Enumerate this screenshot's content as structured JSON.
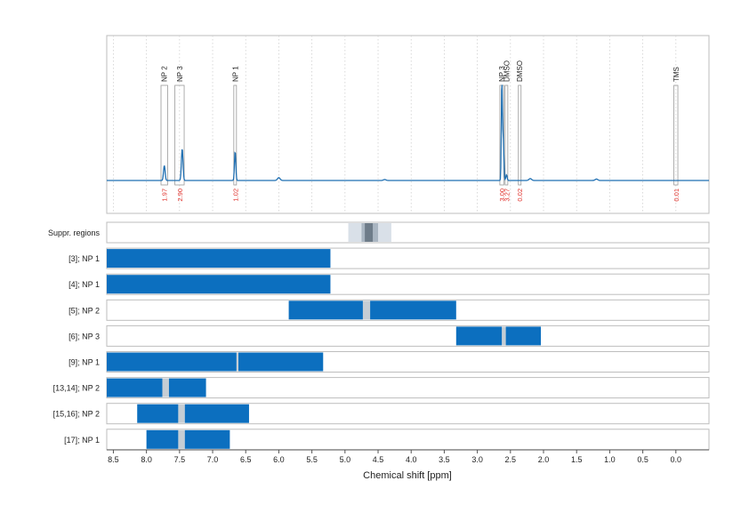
{
  "chart_data": {
    "type": "line",
    "xlabel": "Chemical shift [ppm]",
    "xlim": [
      8.6,
      -0.5
    ],
    "x_reversed": true,
    "x_ticks": [
      "8.5",
      "8.0",
      "7.5",
      "7.0",
      "6.5",
      "6.0",
      "5.5",
      "5.0",
      "4.5",
      "4.0",
      "3.5",
      "3.0",
      "2.5",
      "2.0",
      "1.5",
      "1.0",
      "0.5",
      "0.0"
    ],
    "grid": true,
    "colors": {
      "spectrum": "#1f6fb2",
      "range_bar": "#0c6fbf",
      "gap_band": "#c5cdd4",
      "integral_text": "#e0302a",
      "suppr_outer": "#d9e0e8",
      "suppr_mid": "#aab6c2",
      "suppr_core": "#6e7c89"
    },
    "spectrum": {
      "baseline": 0.0,
      "ylim": [
        -0.15,
        1.0
      ],
      "peaks": [
        {
          "ppm": 7.73,
          "height": 0.16,
          "width": 0.012
        },
        {
          "ppm": 7.46,
          "height": 0.34,
          "width": 0.012
        },
        {
          "ppm": 6.66,
          "height": 0.31,
          "width": 0.01
        },
        {
          "ppm": 6.0,
          "height": 0.03,
          "width": 0.02
        },
        {
          "ppm": 4.4,
          "height": 0.01,
          "width": 0.02
        },
        {
          "ppm": 2.63,
          "height": 1.0,
          "width": 0.008
        },
        {
          "ppm": 2.61,
          "height": 0.45,
          "width": 0.01
        },
        {
          "ppm": 2.56,
          "height": 0.06,
          "width": 0.01
        },
        {
          "ppm": 2.2,
          "height": 0.02,
          "width": 0.02
        },
        {
          "ppm": 1.2,
          "height": 0.015,
          "width": 0.02
        }
      ]
    },
    "annotations": [
      {
        "label": "NP 2",
        "ppm_from": 7.78,
        "ppm_to": 7.68,
        "integral": "1.97"
      },
      {
        "label": "NP 3",
        "ppm_from": 7.57,
        "ppm_to": 7.43,
        "integral": "2.90"
      },
      {
        "label": "NP 1",
        "ppm_from": 6.68,
        "ppm_to": 6.64,
        "integral": "1.02"
      },
      {
        "label": "NP 3",
        "ppm_from": 2.66,
        "ppm_to": 2.6,
        "integral": "3.00"
      },
      {
        "label": "DMSO",
        "ppm_from": 2.58,
        "ppm_to": 2.54,
        "integral": "3.27"
      },
      {
        "label": "DMSO",
        "ppm_from": 2.38,
        "ppm_to": 2.34,
        "integral": "0.02"
      },
      {
        "label": "TMS",
        "ppm_from": 0.03,
        "ppm_to": -0.03,
        "integral": "0.01"
      }
    ],
    "suppression": {
      "label": "Suppr. regions",
      "outer": [
        4.95,
        4.3
      ],
      "mid": [
        4.75,
        4.5
      ],
      "core": [
        4.7,
        4.58
      ]
    },
    "range_rows": [
      {
        "label": "[3]; NP 1",
        "segments": [
          [
            8.6,
            5.22
          ]
        ],
        "gaps": []
      },
      {
        "label": "[4]; NP 1",
        "segments": [
          [
            8.6,
            5.22
          ]
        ],
        "gaps": []
      },
      {
        "label": "[5]; NP 2",
        "segments": [
          [
            5.85,
            4.73
          ],
          [
            4.62,
            3.32
          ]
        ],
        "gaps": [
          [
            4.73,
            4.62
          ]
        ]
      },
      {
        "label": "[6]; NP 3",
        "segments": [
          [
            3.32,
            2.63
          ],
          [
            2.57,
            2.04
          ]
        ],
        "gaps": [
          [
            2.63,
            2.57
          ]
        ]
      },
      {
        "label": "[9]; NP 1",
        "segments": [
          [
            8.6,
            6.64
          ],
          [
            6.61,
            5.33
          ]
        ],
        "gaps": [
          [
            6.64,
            6.61
          ]
        ]
      },
      {
        "label": "[13,14]; NP 2",
        "segments": [
          [
            8.6,
            7.76
          ],
          [
            7.66,
            7.1
          ]
        ],
        "gaps": [
          [
            7.76,
            7.66
          ]
        ]
      },
      {
        "label": "[15,16]; NP 2",
        "segments": [
          [
            8.14,
            7.52
          ],
          [
            7.42,
            6.45
          ]
        ],
        "gaps": [
          [
            7.52,
            7.42
          ]
        ]
      },
      {
        "label": "[17]; NP 1",
        "segments": [
          [
            8.0,
            7.52
          ],
          [
            7.42,
            6.74
          ]
        ],
        "gaps": [
          [
            7.52,
            7.42
          ]
        ]
      }
    ]
  }
}
